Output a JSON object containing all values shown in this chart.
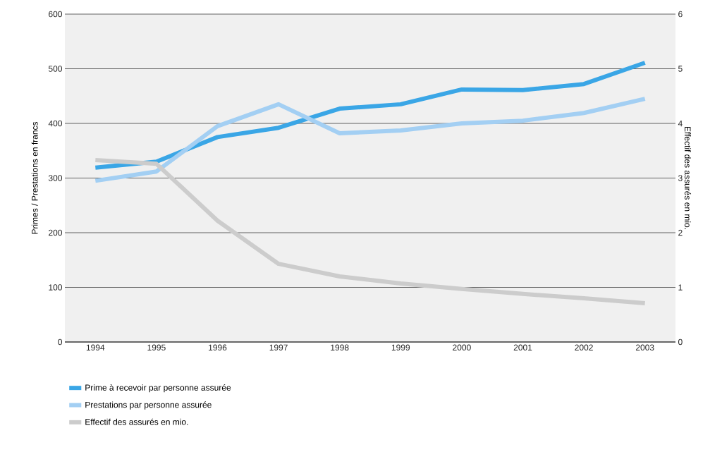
{
  "chart_data": {
    "type": "line",
    "ylabel": "Primes / Prestations en francs",
    "y2label": "Effectif des assurés en mio.",
    "categories": [
      "1994",
      "1995",
      "1996",
      "1997",
      "1998",
      "1999",
      "2000",
      "2001",
      "2002",
      "2003"
    ],
    "series": [
      {
        "name": "Prime à recevoir par personne assurée",
        "color": "#3aa6e6",
        "values": [
          319,
          330,
          375,
          392,
          427,
          435,
          462,
          461,
          472,
          511
        ]
      },
      {
        "name": "Prestations par personne assurée",
        "color": "#a3cff3",
        "values": [
          295,
          312,
          395,
          435,
          382,
          387,
          400,
          405,
          419,
          445
        ]
      },
      {
        "name": "Effectif des assurés en mio.",
        "color": "#cccccc",
        "axis": "y2",
        "values": [
          3.33,
          3.26,
          2.22,
          1.43,
          1.2,
          1.07,
          0.97,
          0.88,
          0.8,
          0.71
        ]
      }
    ],
    "ylim": [
      0,
      600
    ],
    "yticks": [
      0,
      100,
      200,
      300,
      400,
      500,
      600
    ],
    "y2lim": [
      0,
      6
    ],
    "y2ticks": [
      0,
      1,
      2,
      3,
      4,
      5,
      6
    ],
    "grid": "y",
    "legend": "bottom",
    "line_style": "solid",
    "marker": "none"
  }
}
